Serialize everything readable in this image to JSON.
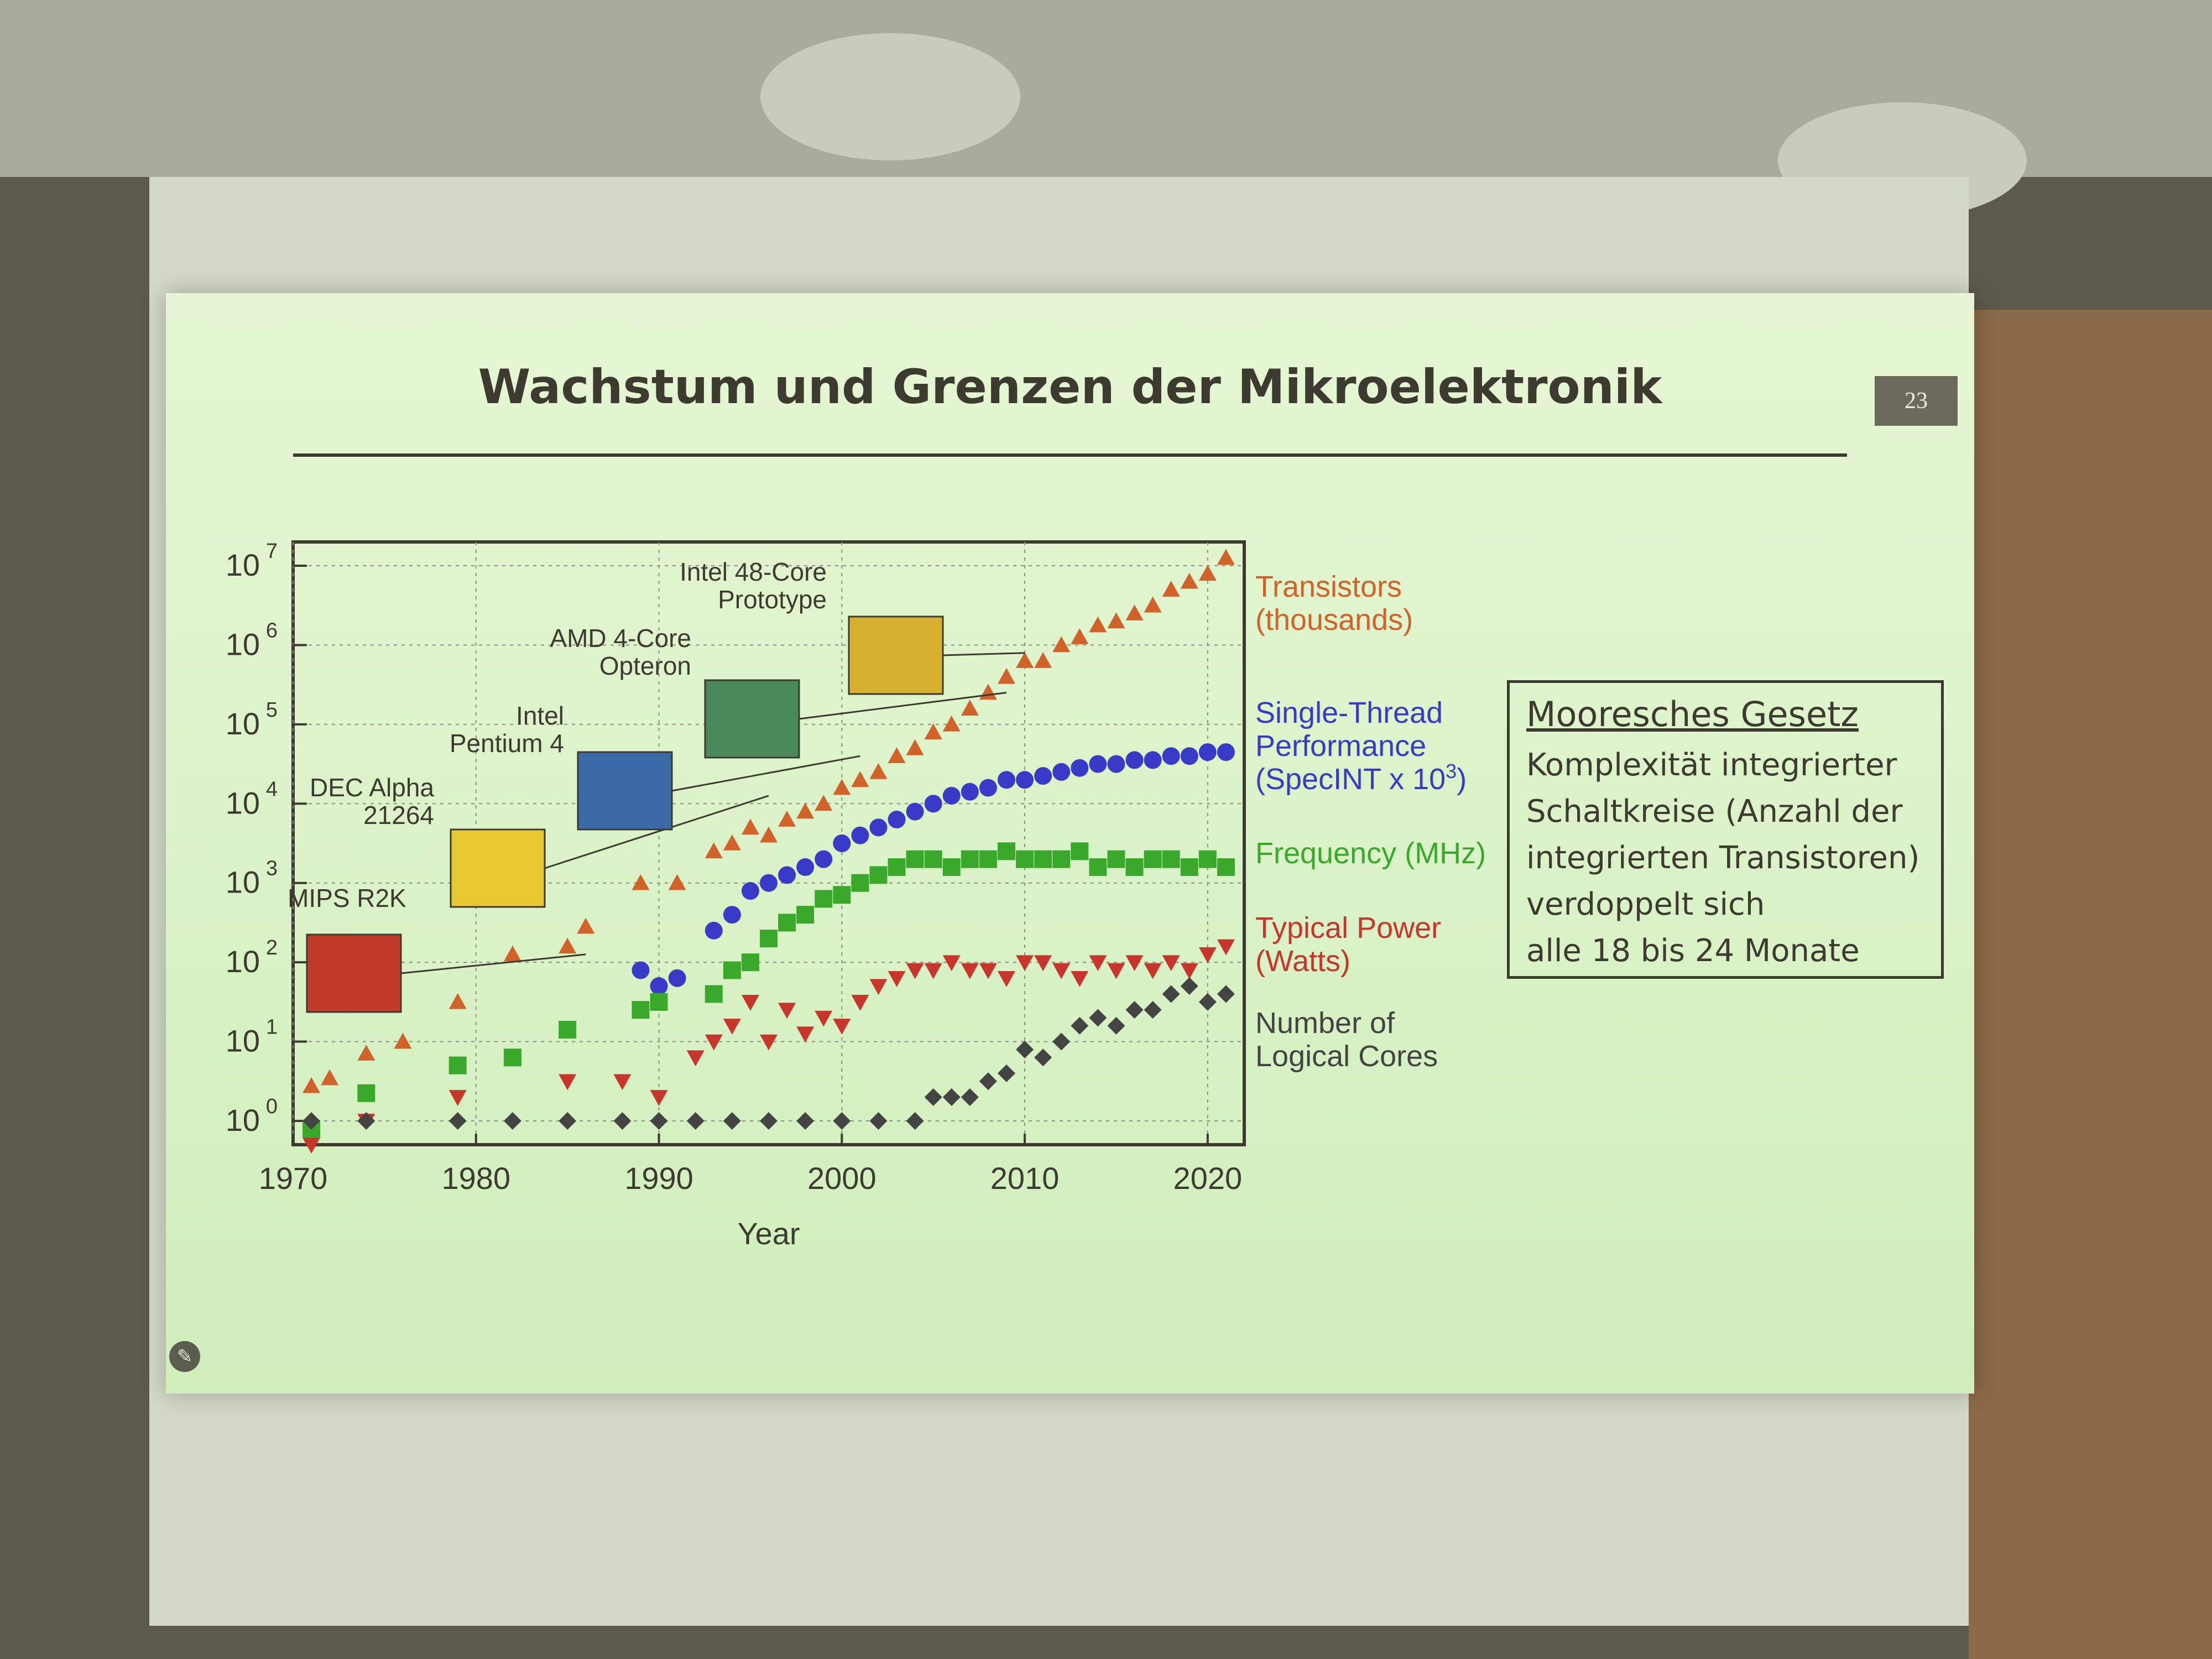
{
  "slide": {
    "title": "Wachstum und Grenzen der Mikroelektronik",
    "number": "23",
    "edit_icon": "pencil-icon"
  },
  "law_box": {
    "title": "Mooresches Gesetz",
    "lines": [
      "Komplexität integrierter",
      "Schaltkreise (Anzahl der",
      "integrierten Transistoren)",
      "verdoppelt sich",
      "alle 18 bis 24 Monate"
    ]
  },
  "chart_data": {
    "type": "scatter",
    "xlabel": "Year",
    "ylabel": "",
    "xlim": [
      1970,
      2022
    ],
    "ylim_log10": [
      -0.3,
      7.3
    ],
    "y_scale": "log",
    "x_ticks": [
      1970,
      1980,
      1990,
      2000,
      2010,
      2020
    ],
    "y_ticks": [
      {
        "value": 0,
        "base": "10",
        "exp": "0"
      },
      {
        "value": 1,
        "base": "10",
        "exp": "1"
      },
      {
        "value": 2,
        "base": "10",
        "exp": "2"
      },
      {
        "value": 3,
        "base": "10",
        "exp": "3"
      },
      {
        "value": 4,
        "base": "10",
        "exp": "4"
      },
      {
        "value": 5,
        "base": "10",
        "exp": "5"
      },
      {
        "value": 6,
        "base": "10",
        "exp": "6"
      },
      {
        "value": 7,
        "base": "10",
        "exp": "7"
      }
    ],
    "grid": true,
    "series": [
      {
        "name": "Transistors (thousands)",
        "label_lines": [
          "Transistors",
          "(thousands)"
        ],
        "color": "#d0622a",
        "marker": "triangle-up",
        "x": [
          1971,
          1972,
          1974,
          1976,
          1979,
          1982,
          1985,
          1986,
          1989,
          1991,
          1993,
          1994,
          1995,
          1996,
          1997,
          1998,
          1999,
          2000,
          2001,
          2002,
          2003,
          2004,
          2005,
          2006,
          2007,
          2008,
          2009,
          2010,
          2011,
          2012,
          2013,
          2014,
          2015,
          2016,
          2017,
          2018,
          2019,
          2020,
          2021
        ],
        "y_log10": [
          0.44,
          0.54,
          0.85,
          1.0,
          1.5,
          2.1,
          2.2,
          2.45,
          3.0,
          3.0,
          3.4,
          3.5,
          3.7,
          3.6,
          3.8,
          3.9,
          4.0,
          4.2,
          4.3,
          4.4,
          4.6,
          4.7,
          4.9,
          5.0,
          5.2,
          5.4,
          5.6,
          5.8,
          5.8,
          6.0,
          6.1,
          6.25,
          6.3,
          6.4,
          6.5,
          6.7,
          6.8,
          6.9,
          7.1
        ]
      },
      {
        "name": "Single-Thread Performance (SpecINT x 10^3)",
        "label_lines": [
          "Single-Thread",
          "Performance",
          "(SpecINT x 10"
        ],
        "label_sup": "3",
        "label_tail": ")",
        "color": "#3a3ac8",
        "marker": "circle",
        "x": [
          1989,
          1990,
          1991,
          1993,
          1994,
          1995,
          1996,
          1997,
          1998,
          1999,
          2000,
          2001,
          2002,
          2003,
          2004,
          2005,
          2006,
          2007,
          2008,
          2009,
          2010,
          2011,
          2012,
          2013,
          2014,
          2015,
          2016,
          2017,
          2018,
          2019,
          2020,
          2021
        ],
        "y_log10": [
          1.9,
          1.7,
          1.8,
          2.4,
          2.6,
          2.9,
          3.0,
          3.1,
          3.2,
          3.3,
          3.5,
          3.6,
          3.7,
          3.8,
          3.9,
          4.0,
          4.1,
          4.15,
          4.2,
          4.3,
          4.3,
          4.35,
          4.4,
          4.45,
          4.5,
          4.5,
          4.55,
          4.55,
          4.6,
          4.6,
          4.65,
          4.65
        ]
      },
      {
        "name": "Frequency (MHz)",
        "label_lines": [
          "Frequency (MHz)"
        ],
        "color": "#3aa82a",
        "marker": "square",
        "x": [
          1971,
          1974,
          1979,
          1982,
          1985,
          1989,
          1990,
          1993,
          1994,
          1995,
          1996,
          1997,
          1998,
          1999,
          2000,
          2001,
          2002,
          2003,
          2004,
          2005,
          2006,
          2007,
          2008,
          2009,
          2010,
          2011,
          2012,
          2013,
          2014,
          2015,
          2016,
          2017,
          2018,
          2019,
          2020,
          2021
        ],
        "y_log10": [
          -0.1,
          0.35,
          0.7,
          0.8,
          1.15,
          1.4,
          1.5,
          1.6,
          1.9,
          2.0,
          2.3,
          2.5,
          2.6,
          2.8,
          2.85,
          3.0,
          3.1,
          3.2,
          3.3,
          3.3,
          3.2,
          3.3,
          3.3,
          3.4,
          3.3,
          3.3,
          3.3,
          3.4,
          3.2,
          3.3,
          3.2,
          3.3,
          3.3,
          3.2,
          3.3,
          3.2
        ]
      },
      {
        "name": "Typical Power (Watts)",
        "label_lines": [
          "Typical Power",
          "(Watts)"
        ],
        "color": "#c8352a",
        "marker": "triangle-down",
        "x": [
          1971,
          1974,
          1979,
          1985,
          1988,
          1990,
          1992,
          1993,
          1994,
          1995,
          1996,
          1997,
          1998,
          1999,
          2000,
          2001,
          2002,
          2003,
          2004,
          2005,
          2006,
          2007,
          2008,
          2009,
          2010,
          2011,
          2012,
          2013,
          2014,
          2015,
          2016,
          2017,
          2018,
          2019,
          2020,
          2021
        ],
        "y_log10": [
          -0.3,
          0.0,
          0.3,
          0.5,
          0.5,
          0.3,
          0.8,
          1.0,
          1.2,
          1.5,
          1.0,
          1.4,
          1.1,
          1.3,
          1.2,
          1.5,
          1.7,
          1.8,
          1.9,
          1.9,
          2.0,
          1.9,
          1.9,
          1.8,
          2.0,
          2.0,
          1.9,
          1.8,
          2.0,
          1.9,
          2.0,
          1.9,
          2.0,
          1.9,
          2.1,
          2.2
        ]
      },
      {
        "name": "Number of Logical Cores",
        "label_lines": [
          "Number of",
          "Logical Cores"
        ],
        "color": "#444444",
        "marker": "diamond",
        "x": [
          1971,
          1974,
          1979,
          1982,
          1985,
          1988,
          1990,
          1992,
          1994,
          1996,
          1998,
          2000,
          2002,
          2004,
          2005,
          2006,
          2007,
          2008,
          2009,
          2010,
          2011,
          2012,
          2013,
          2014,
          2015,
          2016,
          2017,
          2018,
          2019,
          2020,
          2021
        ],
        "y_log10": [
          0,
          0,
          0,
          0,
          0,
          0,
          0,
          0,
          0,
          0,
          0,
          0,
          0,
          0,
          0.3,
          0.3,
          0.3,
          0.5,
          0.6,
          0.9,
          0.8,
          1.0,
          1.2,
          1.3,
          1.2,
          1.4,
          1.4,
          1.6,
          1.7,
          1.5,
          1.6
        ]
      }
    ],
    "annotations": [
      {
        "label_lines": [
          "MIPS R2K"
        ],
        "year": 1986,
        "y_log10": 2.1,
        "chip_color": "#c23a2a"
      },
      {
        "label_lines": [
          "DEC Alpha",
          "21264"
        ],
        "year": 1996,
        "y_log10": 4.1,
        "chip_color": "#e8c830"
      },
      {
        "label_lines": [
          "Intel",
          "Pentium 4"
        ],
        "year": 2001,
        "y_log10": 4.6,
        "chip_color": "#3a6aa8"
      },
      {
        "label_lines": [
          "AMD 4-Core",
          "Opteron"
        ],
        "year": 2009,
        "y_log10": 5.4,
        "chip_color": "#4a8a5a"
      },
      {
        "label_lines": [
          "Intel 48-Core",
          "Prototype"
        ],
        "year": 2010,
        "y_log10": 5.9,
        "chip_color": "#d8b030"
      }
    ]
  }
}
